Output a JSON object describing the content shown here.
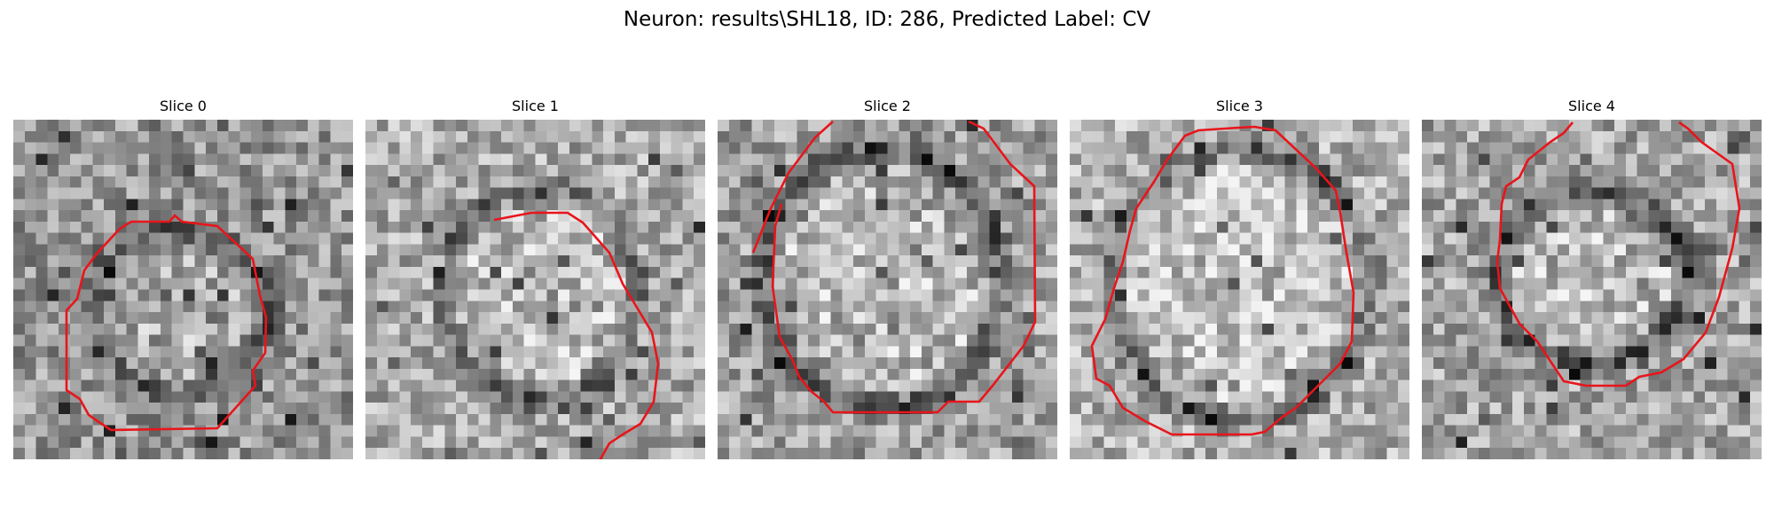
{
  "figure": {
    "title": "Neuron: results\\SHL18, ID: 286, Predicted Label: CV"
  },
  "colors": {
    "contour": "#e8151b",
    "background": "#ffffff",
    "colormap": "grayscale"
  },
  "panels": [
    {
      "title": "Slice 0"
    },
    {
      "title": "Slice 1"
    },
    {
      "title": "Slice 2"
    },
    {
      "title": "Slice 3"
    },
    {
      "title": "Slice 4"
    }
  ]
}
